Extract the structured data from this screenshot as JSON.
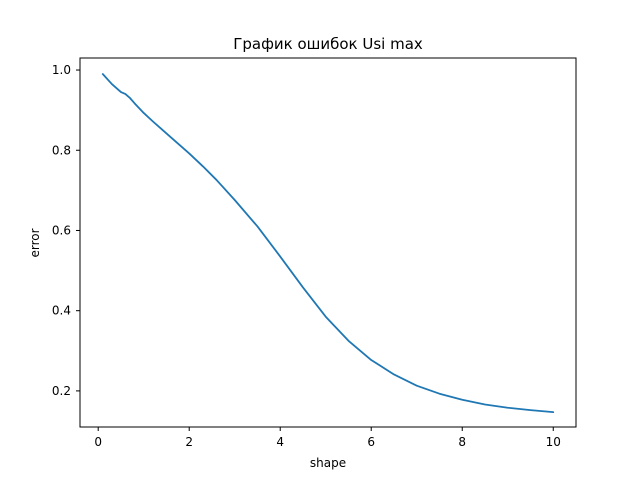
{
  "chart_data": {
    "type": "line",
    "title": "График ошибок Usi max",
    "xlabel": "shape",
    "ylabel": "error",
    "xlim": [
      -0.4,
      10.5
    ],
    "ylim": [
      0.11,
      1.03
    ],
    "xticks": [
      0,
      2,
      4,
      6,
      8,
      10
    ],
    "yticks": [
      0.2,
      0.4,
      0.6,
      0.8,
      1.0
    ],
    "xtick_labels": [
      "0",
      "2",
      "4",
      "6",
      "8",
      "10"
    ],
    "ytick_labels": [
      "0.2",
      "0.4",
      "0.6",
      "0.8",
      "1.0"
    ],
    "grid": false,
    "color": "#1f77b4",
    "series": [
      {
        "x": [
          0.1,
          0.3,
          0.5,
          0.6,
          0.7,
          0.8,
          1.0,
          1.2,
          1.5,
          1.8,
          2.0,
          2.3,
          2.6,
          3.0,
          3.5,
          4.0,
          4.5,
          5.0,
          5.5,
          6.0,
          6.5,
          7.0,
          7.5,
          8.0,
          8.5,
          9.0,
          9.5,
          10.0
        ],
        "y": [
          0.99,
          0.965,
          0.945,
          0.94,
          0.93,
          0.917,
          0.893,
          0.872,
          0.842,
          0.812,
          0.792,
          0.76,
          0.726,
          0.676,
          0.61,
          0.535,
          0.458,
          0.385,
          0.325,
          0.277,
          0.241,
          0.213,
          0.193,
          0.178,
          0.166,
          0.158,
          0.152,
          0.147
        ]
      }
    ]
  }
}
